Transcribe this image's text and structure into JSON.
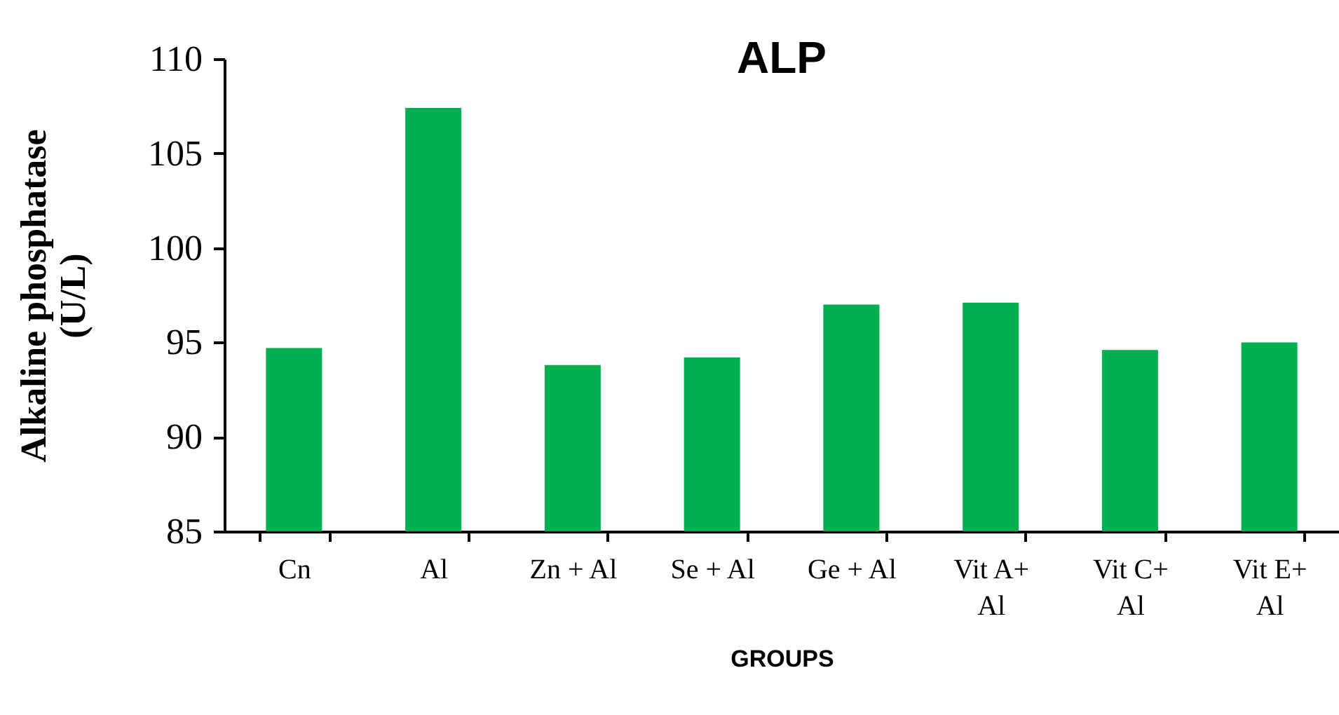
{
  "chart_data": {
    "type": "bar",
    "title": "ALP",
    "xlabel": "GROUPS",
    "ylabel": "Alkaline phosphatase (U/L)",
    "categories": [
      "Cn",
      "Al",
      "Zn + Al",
      "Se + Al",
      "Ge + Al",
      "Vit A+ Al",
      "Vit C+ Al",
      "Vit E+ Al"
    ],
    "values": [
      94.7,
      107.4,
      93.8,
      94.2,
      97.0,
      97.1,
      94.6,
      95.0
    ],
    "color": "#00b050",
    "ylim": [
      85,
      110
    ],
    "yticks": [
      85,
      90,
      95,
      100,
      105,
      110
    ],
    "grid": false
  }
}
